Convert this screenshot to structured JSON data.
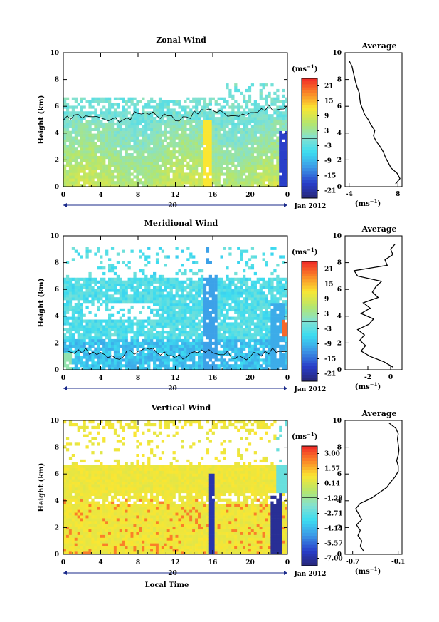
{
  "figure": {
    "bottom_xlabel": "Local Time",
    "date_label": "Jan 2012",
    "day_label": "20",
    "units_label": "(ms",
    "units_exp": "−1",
    "units_close": ")"
  },
  "chart_data": [
    {
      "type": "heatmap",
      "title": "Zonal Wind",
      "ylabel": "Height (km)",
      "xlim": [
        0,
        24
      ],
      "ylim": [
        0,
        10
      ],
      "x_ticks": [
        "0",
        "4",
        "8",
        "12",
        "16",
        "20",
        "0"
      ],
      "y_ticks": [
        "0",
        "2",
        "4",
        "6",
        "8",
        "10"
      ],
      "colorbar_ticks": [
        "21",
        "15",
        "9",
        "3",
        "-3",
        "-9",
        "-15",
        "-21"
      ],
      "colorbar_range": [
        -24,
        24
      ],
      "zero_contour": true,
      "profile": {
        "title": "Average",
        "xlim": [
          -5,
          9
        ],
        "x_ticks": [
          "-4",
          "8"
        ],
        "x_tick_values": [
          -4,
          8
        ],
        "xlabel": "(ms",
        "xlabel_exp": "−1",
        "xlabel_close": ")",
        "height": [
          0.2,
          0.6,
          1.0,
          1.4,
          1.8,
          2.2,
          2.6,
          3.0,
          3.4,
          3.8,
          4.2,
          4.6,
          5.0,
          5.4,
          5.8,
          6.2,
          6.6,
          7.0,
          7.4,
          7.8,
          8.2,
          8.6,
          9.0,
          9.4
        ],
        "value": [
          7.4,
          8.5,
          7.8,
          6.3,
          5.6,
          4.9,
          4.4,
          3.6,
          2.6,
          2.0,
          2.3,
          1.4,
          0.7,
          -0.2,
          -0.7,
          -1.2,
          -1.4,
          -1.5,
          -2.0,
          -2.4,
          -2.7,
          -3.0,
          -3.3,
          -4.0
        ]
      }
    },
    {
      "type": "heatmap",
      "title": "Meridional Wind",
      "ylabel": "Height (km)",
      "xlim": [
        0,
        24
      ],
      "ylim": [
        0,
        10
      ],
      "x_ticks": [
        "0",
        "4",
        "8",
        "12",
        "16",
        "20",
        "0"
      ],
      "y_ticks": [
        "0",
        "2",
        "4",
        "6",
        "8",
        "10"
      ],
      "colorbar_ticks": [
        "21",
        "15",
        "9",
        "3",
        "-3",
        "-9",
        "-15",
        "-21"
      ],
      "colorbar_range": [
        -24,
        24
      ],
      "zero_contour": true,
      "profile": {
        "title": "Average",
        "xlim": [
          -4,
          1
        ],
        "x_ticks": [
          "-2",
          "0"
        ],
        "x_tick_values": [
          -2,
          0
        ],
        "xlabel": "(ms",
        "xlabel_exp": "−1",
        "xlabel_close": ")",
        "height": [
          0.2,
          0.6,
          1.0,
          1.4,
          1.8,
          2.2,
          2.6,
          3.0,
          3.4,
          3.8,
          4.2,
          4.6,
          5.0,
          5.4,
          5.8,
          6.2,
          6.6,
          7.0,
          7.4,
          7.8,
          8.2,
          8.6,
          9.0,
          9.4
        ],
        "value": [
          0.2,
          -0.6,
          -1.8,
          -2.6,
          -2.2,
          -2.7,
          -2.3,
          -2.9,
          -1.9,
          -1.5,
          -2.6,
          -1.8,
          -2.4,
          -1.1,
          -1.6,
          -1.3,
          -0.8,
          -2.9,
          -3.2,
          -0.3,
          -0.5,
          0.2,
          0.0,
          0.4
        ]
      }
    },
    {
      "type": "heatmap",
      "title": "Vertical Wind",
      "ylabel": "Height (km)",
      "xlabel": "Local Time",
      "xlim": [
        0,
        24
      ],
      "ylim": [
        0,
        10
      ],
      "x_ticks": [
        "0",
        "4",
        "8",
        "12",
        "16",
        "20",
        "0"
      ],
      "y_ticks": [
        "0",
        "2",
        "4",
        "6",
        "8",
        "10"
      ],
      "colorbar_ticks": [
        "3.00",
        "1.57",
        "0.14",
        "-1.28",
        "-2.71",
        "-4.14",
        "-5.57",
        "-7.00"
      ],
      "colorbar_range": [
        -7.7,
        3.7
      ],
      "zero_contour": false,
      "profile": {
        "title": "Average",
        "xlim": [
          -0.8,
          -0.05
        ],
        "x_ticks": [
          "-0.7",
          "-0.1"
        ],
        "x_tick_values": [
          -0.7,
          -0.1
        ],
        "xlabel": "(ms",
        "xlabel_exp": "−1",
        "xlabel_close": ")",
        "height": [
          0.2,
          0.6,
          1.0,
          1.4,
          1.8,
          2.2,
          2.6,
          3.0,
          3.4,
          3.8,
          4.2,
          4.6,
          5.0,
          5.4,
          5.8,
          6.2,
          6.6,
          7.0,
          7.4,
          7.8,
          8.2,
          8.6,
          9.0,
          9.4,
          9.8
        ],
        "value": [
          -0.55,
          -0.6,
          -0.58,
          -0.63,
          -0.6,
          -0.65,
          -0.58,
          -0.62,
          -0.66,
          -0.6,
          -0.45,
          -0.35,
          -0.25,
          -0.2,
          -0.14,
          -0.1,
          -0.1,
          -0.12,
          -0.1,
          -0.09,
          -0.1,
          -0.11,
          -0.1,
          -0.13,
          -0.22
        ]
      }
    }
  ]
}
